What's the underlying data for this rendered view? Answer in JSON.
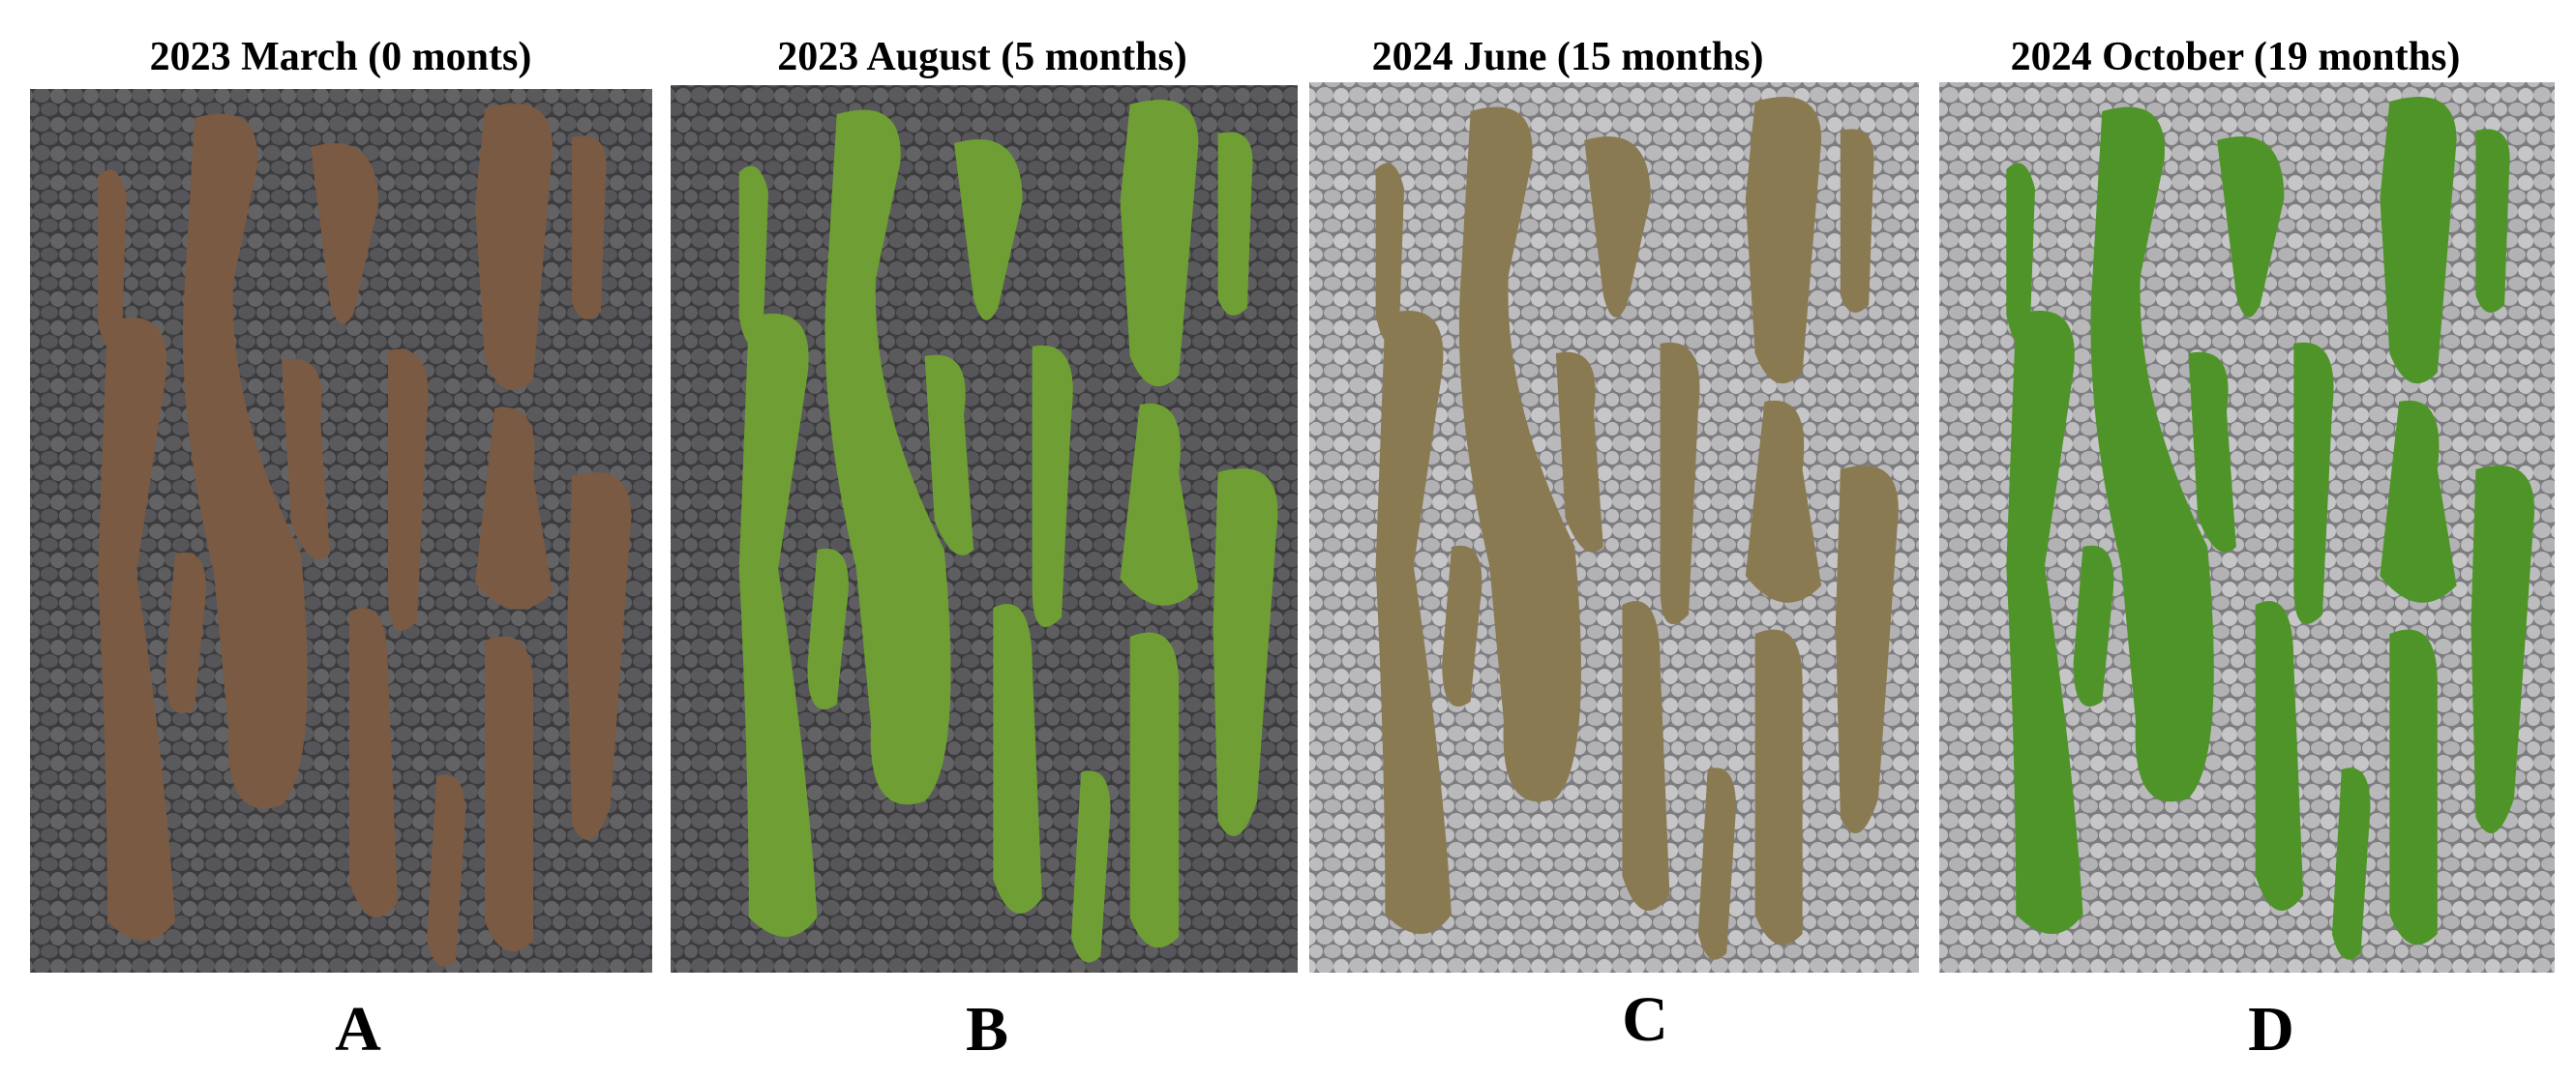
{
  "panels": [
    {
      "title": "2023 March (0 monts)",
      "label": "A"
    },
    {
      "title": "2023 August (5 months)",
      "label": "B"
    },
    {
      "title": "2024 June (15 months)",
      "label": "C"
    },
    {
      "title": "2024 October (19 months)",
      "label": "D"
    }
  ]
}
